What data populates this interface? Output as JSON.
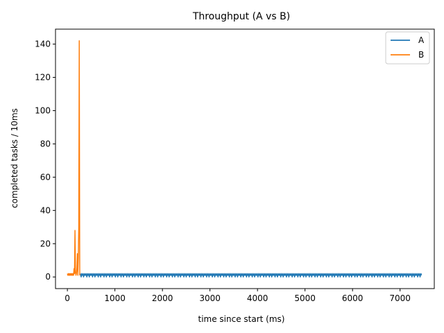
{
  "chart_data": {
    "type": "line",
    "title": "Throughput (A vs B)",
    "xlabel": "time since start (ms)",
    "ylabel": "completed tasks / 10ms",
    "xlim": [
      -250,
      7720
    ],
    "ylim": [
      -7,
      149
    ],
    "xticks": [
      0,
      1000,
      2000,
      3000,
      4000,
      5000,
      6000,
      7000
    ],
    "xtick_labels": [
      "0",
      "1000",
      "2000",
      "3000",
      "4000",
      "5000",
      "6000",
      "7000"
    ],
    "yticks": [
      0,
      20,
      40,
      60,
      80,
      100,
      120,
      140
    ],
    "ytick_labels": [
      "0",
      "20",
      "40",
      "60",
      "80",
      "100",
      "120",
      "140"
    ],
    "grid": false,
    "legend_position": "top-right",
    "series": [
      {
        "name": "A",
        "color": "#1f77b4",
        "x_range": [
          260,
          7450
        ],
        "sample_interval_ms": 10,
        "value_pattern": [
          1,
          2,
          1,
          0,
          2,
          1,
          1,
          2,
          0,
          1,
          2,
          1
        ]
      },
      {
        "name": "B",
        "color": "#ff7f0e",
        "x": [
          0,
          10,
          20,
          30,
          40,
          50,
          60,
          70,
          80,
          90,
          100,
          110,
          120,
          130,
          140,
          150,
          160,
          170,
          180,
          190,
          200,
          210,
          220,
          230,
          240,
          250,
          260
        ],
        "y": [
          2,
          1,
          2,
          1,
          2,
          1,
          2,
          1,
          2,
          1,
          2,
          1,
          2,
          1,
          5,
          2,
          28,
          3,
          1,
          2,
          5,
          14,
          1,
          12,
          30,
          142,
          1
        ]
      }
    ]
  }
}
